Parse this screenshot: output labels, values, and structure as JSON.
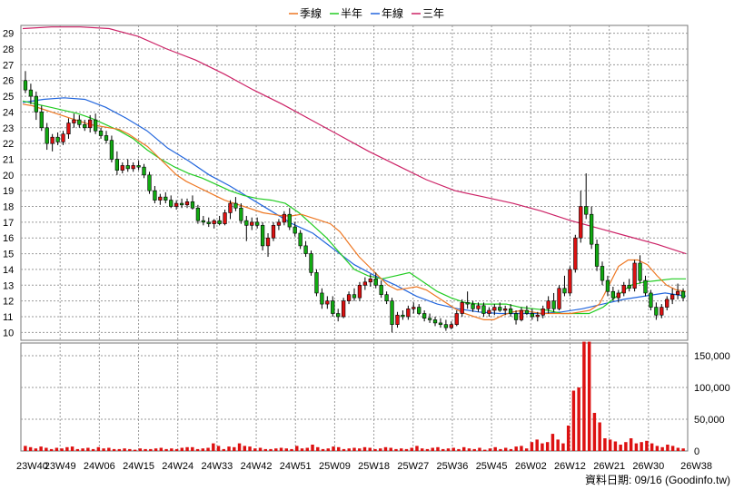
{
  "legend": [
    {
      "label": "季線",
      "color": "#ee7722"
    },
    {
      "label": "半年",
      "color": "#22cc22"
    },
    {
      "label": "年線",
      "color": "#2266dd"
    },
    {
      "label": "三年",
      "color": "#cc2266"
    }
  ],
  "footer": "資料日期: 09/16 (Goodinfo.tw)",
  "colors": {
    "up": "#dd1111",
    "down": "#11aa11",
    "volume": "#dd1111",
    "grid": "#999999"
  },
  "chart_data": {
    "type": "candlestick+volume",
    "x_tick_labels": [
      "23W40",
      "23W49",
      "24W06",
      "24W15",
      "24W24",
      "24W33",
      "24W42",
      "24W51",
      "25W09",
      "25W18",
      "25W27",
      "25W36",
      "25W45",
      "26W02",
      "26W12",
      "26W21",
      "26W30",
      "26W38"
    ],
    "price_axis": {
      "ticks": [
        10,
        11,
        12,
        13,
        14,
        15,
        16,
        17,
        18,
        19,
        20,
        21,
        22,
        23,
        24,
        25,
        26,
        27,
        28,
        29
      ],
      "ylim": [
        9.5,
        29.5
      ]
    },
    "volume_axis": {
      "ticks": [
        0,
        50000,
        100000,
        150000
      ],
      "tick_labels": [
        "0",
        "50,000",
        "100,000",
        "150,000"
      ],
      "ylim": [
        0,
        170000
      ]
    },
    "candles": [
      [
        26.0,
        26.6,
        25.2,
        25.4
      ],
      [
        25.4,
        25.8,
        24.5,
        25.0
      ],
      [
        25.0,
        25.3,
        23.5,
        24.0
      ],
      [
        24.0,
        24.4,
        22.8,
        23.0
      ],
      [
        23.0,
        23.3,
        21.6,
        22.0
      ],
      [
        22.0,
        22.6,
        21.5,
        22.4
      ],
      [
        22.4,
        22.7,
        21.9,
        22.1
      ],
      [
        22.1,
        22.8,
        21.9,
        22.6
      ],
      [
        22.6,
        23.6,
        22.3,
        23.3
      ],
      [
        23.3,
        23.9,
        23.0,
        23.5
      ],
      [
        23.5,
        23.8,
        23.0,
        23.2
      ],
      [
        23.2,
        23.5,
        22.8,
        23.0
      ],
      [
        23.0,
        23.8,
        22.7,
        23.5
      ],
      [
        23.5,
        23.9,
        22.6,
        22.8
      ],
      [
        22.8,
        23.0,
        22.3,
        22.5
      ],
      [
        22.5,
        22.8,
        22.0,
        22.2
      ],
      [
        22.2,
        22.5,
        20.8,
        21.0
      ],
      [
        21.0,
        21.5,
        20.0,
        20.3
      ],
      [
        20.3,
        20.8,
        20.1,
        20.6
      ],
      [
        20.6,
        21.0,
        20.2,
        20.4
      ],
      [
        20.4,
        20.8,
        20.2,
        20.6
      ],
      [
        20.6,
        20.9,
        20.3,
        20.5
      ],
      [
        20.5,
        20.7,
        19.8,
        20.0
      ],
      [
        20.0,
        20.2,
        18.8,
        19.0
      ],
      [
        19.0,
        19.3,
        18.2,
        18.4
      ],
      [
        18.4,
        18.8,
        18.1,
        18.6
      ],
      [
        18.6,
        18.9,
        18.2,
        18.4
      ],
      [
        18.4,
        18.7,
        17.9,
        18.0
      ],
      [
        18.0,
        18.4,
        17.8,
        18.2
      ],
      [
        18.2,
        18.5,
        17.9,
        18.1
      ],
      [
        18.1,
        18.5,
        17.9,
        18.3
      ],
      [
        18.3,
        18.7,
        17.8,
        17.9
      ],
      [
        17.9,
        18.1,
        16.9,
        17.1
      ],
      [
        17.1,
        17.4,
        16.8,
        17.0
      ],
      [
        17.0,
        17.3,
        16.7,
        16.9
      ],
      [
        16.9,
        17.2,
        16.6,
        17.1
      ],
      [
        17.1,
        17.4,
        16.8,
        16.9
      ],
      [
        16.9,
        17.8,
        16.8,
        17.6
      ],
      [
        17.6,
        18.4,
        17.2,
        18.2
      ],
      [
        18.2,
        18.6,
        17.7,
        17.9
      ],
      [
        17.9,
        18.2,
        16.9,
        17.1
      ],
      [
        17.1,
        17.4,
        15.8,
        16.8
      ],
      [
        16.8,
        17.3,
        16.5,
        17.0
      ],
      [
        17.0,
        17.3,
        16.6,
        16.8
      ],
      [
        16.8,
        17.0,
        15.2,
        15.5
      ],
      [
        15.5,
        16.3,
        14.8,
        16.0
      ],
      [
        16.0,
        17.0,
        15.8,
        16.8
      ],
      [
        16.8,
        17.2,
        16.5,
        17.0
      ],
      [
        17.0,
        17.7,
        16.8,
        17.5
      ],
      [
        17.5,
        17.9,
        16.5,
        16.7
      ],
      [
        16.7,
        17.0,
        16.1,
        16.3
      ],
      [
        16.3,
        16.5,
        15.3,
        15.5
      ],
      [
        15.5,
        15.8,
        14.8,
        15.0
      ],
      [
        15.0,
        15.2,
        13.6,
        13.8
      ],
      [
        13.8,
        14.0,
        12.3,
        12.5
      ],
      [
        12.5,
        12.8,
        11.5,
        11.8
      ],
      [
        11.8,
        12.3,
        11.5,
        12.0
      ],
      [
        12.0,
        12.3,
        11.0,
        11.2
      ],
      [
        11.2,
        11.5,
        10.7,
        11.0
      ],
      [
        11.0,
        12.2,
        10.9,
        12.0
      ],
      [
        12.0,
        12.6,
        11.8,
        12.4
      ],
      [
        12.4,
        12.8,
        12.0,
        12.2
      ],
      [
        12.2,
        13.2,
        12.0,
        13.0
      ],
      [
        13.0,
        13.5,
        12.7,
        13.2
      ],
      [
        13.2,
        13.7,
        12.9,
        13.4
      ],
      [
        13.4,
        13.8,
        12.8,
        13.0
      ],
      [
        13.0,
        13.3,
        12.2,
        12.4
      ],
      [
        12.4,
        12.6,
        11.8,
        12.0
      ],
      [
        12.0,
        12.2,
        10.0,
        10.5
      ],
      [
        10.5,
        11.3,
        10.3,
        11.1
      ],
      [
        11.1,
        11.4,
        10.8,
        11.0
      ],
      [
        11.0,
        11.7,
        10.8,
        11.5
      ],
      [
        11.5,
        11.9,
        11.2,
        11.6
      ],
      [
        11.6,
        11.8,
        11.1,
        11.2
      ],
      [
        11.2,
        11.4,
        10.7,
        10.9
      ],
      [
        10.9,
        11.2,
        10.6,
        10.8
      ],
      [
        10.8,
        11.0,
        10.4,
        10.6
      ],
      [
        10.6,
        10.9,
        10.3,
        10.5
      ],
      [
        10.5,
        10.8,
        10.1,
        10.3
      ],
      [
        10.3,
        10.7,
        10.2,
        10.5
      ],
      [
        10.5,
        11.4,
        10.4,
        11.2
      ],
      [
        11.2,
        12.1,
        11.0,
        11.9
      ],
      [
        11.9,
        12.6,
        11.5,
        11.8
      ],
      [
        11.8,
        12.0,
        11.3,
        11.5
      ],
      [
        11.5,
        11.9,
        11.3,
        11.7
      ],
      [
        11.7,
        11.9,
        11.0,
        11.2
      ],
      [
        11.2,
        11.6,
        11.0,
        11.4
      ],
      [
        11.4,
        11.8,
        11.1,
        11.6
      ],
      [
        11.6,
        11.9,
        11.3,
        11.4
      ],
      [
        11.4,
        11.7,
        11.1,
        11.5
      ],
      [
        11.5,
        11.8,
        11.0,
        11.2
      ],
      [
        11.2,
        11.4,
        10.5,
        10.8
      ],
      [
        10.8,
        11.6,
        10.7,
        11.4
      ],
      [
        11.4,
        11.7,
        11.1,
        11.2
      ],
      [
        11.2,
        11.5,
        10.8,
        11.0
      ],
      [
        11.0,
        11.3,
        10.7,
        11.1
      ],
      [
        11.1,
        11.7,
        10.9,
        11.5
      ],
      [
        11.5,
        12.3,
        11.2,
        12.0
      ],
      [
        12.0,
        12.5,
        11.3,
        11.5
      ],
      [
        11.5,
        13.0,
        11.4,
        12.8
      ],
      [
        12.8,
        13.6,
        12.3,
        12.5
      ],
      [
        12.5,
        14.2,
        12.3,
        14.0
      ],
      [
        14.0,
        16.2,
        13.8,
        16.0
      ],
      [
        16.0,
        19.0,
        15.7,
        18.0
      ],
      [
        18.0,
        20.1,
        17.2,
        17.5
      ],
      [
        17.5,
        18.0,
        15.3,
        15.6
      ],
      [
        15.6,
        15.9,
        13.9,
        14.2
      ],
      [
        14.2,
        14.5,
        13.0,
        13.3
      ],
      [
        13.3,
        13.6,
        12.3,
        12.6
      ],
      [
        12.6,
        12.9,
        12.0,
        12.2
      ],
      [
        12.2,
        12.7,
        11.9,
        12.5
      ],
      [
        12.5,
        13.2,
        12.3,
        13.0
      ],
      [
        13.0,
        13.4,
        12.6,
        12.8
      ],
      [
        12.8,
        14.6,
        12.6,
        14.4
      ],
      [
        14.4,
        14.9,
        13.1,
        13.3
      ],
      [
        13.3,
        13.6,
        12.3,
        12.5
      ],
      [
        12.5,
        12.7,
        11.4,
        11.6
      ],
      [
        11.6,
        11.9,
        10.8,
        11.1
      ],
      [
        11.1,
        11.8,
        10.9,
        11.6
      ],
      [
        11.6,
        12.3,
        11.4,
        12.1
      ],
      [
        12.1,
        12.8,
        11.8,
        12.4
      ],
      [
        12.4,
        13.1,
        12.1,
        12.6
      ],
      [
        12.6,
        12.8,
        12.0,
        12.2
      ]
    ],
    "volume": [
      8000,
      6000,
      4000,
      7000,
      5000,
      3000,
      5000,
      4000,
      6000,
      7000,
      3000,
      4000,
      5000,
      3000,
      6000,
      4000,
      5000,
      3000,
      3000,
      4000,
      3000,
      2000,
      4000,
      3000,
      3000,
      4000,
      5000,
      3000,
      4000,
      3000,
      5000,
      6000,
      6000,
      3000,
      4000,
      5000,
      12000,
      8000,
      3000,
      7000,
      6000,
      12000,
      8000,
      7000,
      4000,
      5000,
      3000,
      3000,
      4000,
      5000,
      4000,
      3000,
      8000,
      4000,
      5000,
      10000,
      6000,
      3000,
      4000,
      7000,
      6000,
      3000,
      4000,
      5000,
      4000,
      6000,
      5000,
      3000,
      4000,
      6000,
      5000,
      3000,
      4000,
      3000,
      5000,
      8000,
      4000,
      3000,
      5000,
      6000,
      3000,
      4000,
      5000,
      3000,
      6000,
      4000,
      3000,
      5000,
      2000,
      4000,
      6000,
      3000,
      5000,
      3000,
      7000,
      8000,
      4000,
      14000,
      18000,
      12000,
      14000,
      27000,
      18000,
      12000,
      40000,
      95000,
      100000,
      172000,
      172000,
      60000,
      45000,
      20000,
      18000,
      15000,
      10000,
      14000,
      20000,
      12000,
      14000,
      16000,
      12000,
      8000,
      6000,
      10000,
      8000,
      5000,
      4000
    ],
    "ma_quarter": [
      24.5,
      24.4,
      24.2,
      24.0,
      23.8,
      23.6,
      23.4,
      23.2,
      23.1,
      23.0,
      22.9,
      22.6,
      22.2,
      21.8,
      21.2,
      20.6,
      20.0,
      19.6,
      19.3,
      19.0,
      18.7,
      18.4,
      18.2,
      18.0,
      17.8,
      17.6,
      17.5,
      17.4,
      17.4,
      17.5,
      17.3,
      17.1,
      16.9,
      16.4,
      15.6,
      14.8,
      14.2,
      13.6,
      13.0,
      12.7,
      12.8,
      12.9,
      12.7,
      12.3,
      11.9,
      11.5,
      11.2,
      11.0,
      10.8,
      10.8,
      11.1,
      11.3,
      11.4,
      11.3,
      11.2,
      11.2,
      11.2,
      11.2,
      11.3,
      11.4,
      11.8,
      13.0,
      14.2,
      14.6,
      14.6,
      14.3,
      13.6,
      13.0,
      12.7,
      12.6
    ],
    "ma_half": [
      24.7,
      24.5,
      24.3,
      24.1,
      23.9,
      23.6,
      23.2,
      22.8,
      22.3,
      21.6,
      21.0,
      20.5,
      20.1,
      19.8,
      19.4,
      19.0,
      18.7,
      18.5,
      18.4,
      18.2,
      17.6,
      16.8,
      16.0,
      15.0,
      14.0,
      13.6,
      13.4,
      13.6,
      13.8,
      13.2,
      12.6,
      12.2,
      11.9,
      11.8,
      11.8,
      11.8,
      11.6,
      11.5,
      11.4,
      11.2,
      11.2,
      11.2,
      11.6,
      12.3,
      13.0,
      13.2,
      13.3,
      13.4,
      13.4
    ],
    "ma_year": [
      24.6,
      24.8,
      24.9,
      24.8,
      24.3,
      23.6,
      22.8,
      21.7,
      20.9,
      20.0,
      19.3,
      18.5,
      17.7,
      16.9,
      16.3,
      15.3,
      14.3,
      13.6,
      13.0,
      12.3,
      11.8,
      11.5,
      11.3,
      11.2,
      11.2,
      11.2,
      11.3,
      11.5,
      11.8,
      12.1,
      12.3,
      12.5,
      12.3
    ],
    "ma_3year": [
      29.3,
      29.4,
      29.4,
      29.3,
      28.8,
      28.0,
      27.3,
      26.4,
      25.4,
      24.5,
      23.5,
      22.5,
      21.5,
      20.6,
      19.7,
      19.0,
      18.6,
      18.2,
      17.7,
      17.1,
      16.6,
      16.1,
      15.6,
      15.0
    ]
  }
}
